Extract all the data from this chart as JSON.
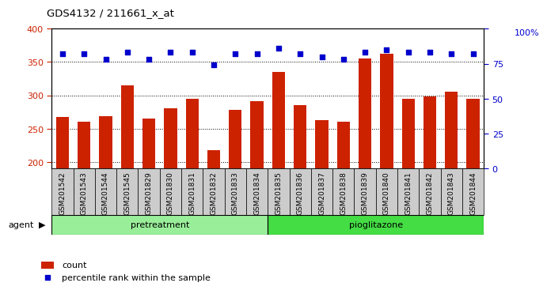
{
  "title": "GDS4132 / 211661_x_at",
  "samples": [
    "GSM201542",
    "GSM201543",
    "GSM201544",
    "GSM201545",
    "GSM201829",
    "GSM201830",
    "GSM201831",
    "GSM201832",
    "GSM201833",
    "GSM201834",
    "GSM201835",
    "GSM201836",
    "GSM201837",
    "GSM201838",
    "GSM201839",
    "GSM201840",
    "GSM201841",
    "GSM201842",
    "GSM201843",
    "GSM201844"
  ],
  "counts": [
    268,
    260,
    269,
    315,
    265,
    280,
    295,
    218,
    278,
    291,
    335,
    285,
    263,
    260,
    355,
    363,
    295,
    298,
    305,
    295
  ],
  "percentiles": [
    82,
    82,
    78,
    83,
    78,
    83,
    83,
    74,
    82,
    82,
    86,
    82,
    80,
    78,
    83,
    85,
    83,
    83,
    82,
    82
  ],
  "pretreatment_count": 10,
  "pioglitazone_count": 10,
  "ylim_left": [
    190,
    400
  ],
  "ylim_right": [
    0,
    100
  ],
  "yticks_left": [
    200,
    250,
    300,
    350,
    400
  ],
  "yticks_right": [
    0,
    25,
    50,
    75,
    100
  ],
  "bar_color": "#cc2200",
  "dot_color": "#0000cc",
  "pretreatment_color": "#99ee99",
  "pioglitazone_color": "#44dd44",
  "xtick_bg_color": "#cccccc",
  "legend_count_color": "#cc2200",
  "legend_pct_color": "#0000cc",
  "left_tick_color": "#cc2200",
  "right_tick_color": "#0000cc"
}
